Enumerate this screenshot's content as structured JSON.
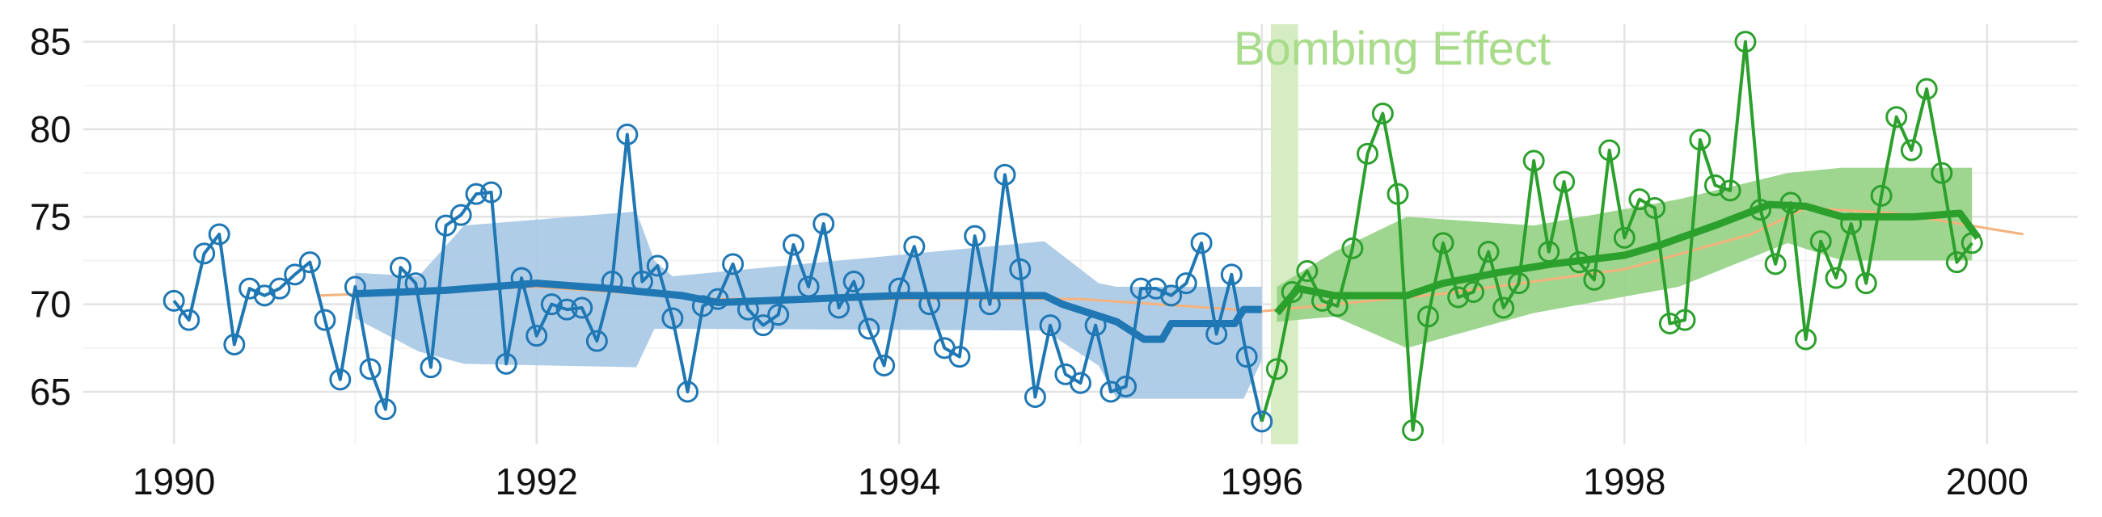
{
  "chart_data": {
    "type": "line",
    "annotation": "Bombing Effect",
    "annotation_span": [
      1996.05,
      1996.2
    ],
    "annotation_color": "#a8dc8a",
    "span_color": "#d6edc4",
    "xlim": [
      1989.5,
      2000.5
    ],
    "ylim": [
      62,
      86
    ],
    "xticks": [
      1990,
      1992,
      1994,
      1996,
      1998,
      2000
    ],
    "yticks": [
      65,
      70,
      75,
      80,
      85
    ],
    "grid": true,
    "series": [
      {
        "color": "#1f77b4",
        "x": [
          1990,
          1990.083,
          1990.167,
          1990.25,
          1990.333,
          1990.417,
          1990.5,
          1990.583,
          1990.667,
          1990.75,
          1990.833,
          1990.917,
          1991,
          1991.083,
          1991.167,
          1991.25,
          1991.333,
          1991.417,
          1991.5,
          1991.583,
          1991.667,
          1991.75,
          1991.833,
          1991.917,
          1992,
          1992.083,
          1992.167,
          1992.25,
          1992.333,
          1992.417,
          1992.5,
          1992.583,
          1992.667,
          1992.75,
          1992.833,
          1992.917,
          1993,
          1993.083,
          1993.167,
          1993.25,
          1993.333,
          1993.417,
          1993.5,
          1993.583,
          1993.667,
          1993.75,
          1993.833,
          1993.917,
          1994,
          1994.083,
          1994.167,
          1994.25,
          1994.333,
          1994.417,
          1994.5,
          1994.583,
          1994.667,
          1994.75,
          1994.833,
          1994.917,
          1995,
          1995.083,
          1995.167,
          1995.25,
          1995.333,
          1995.417,
          1995.5,
          1995.583,
          1995.667,
          1995.75,
          1995.833,
          1995.917,
          1996
        ],
        "values": [
          70.2,
          69.1,
          72.9,
          74.0,
          67.7,
          70.9,
          70.5,
          70.9,
          71.7,
          72.4,
          69.1,
          65.7,
          71.0,
          66.3,
          64.0,
          72.1,
          71.2,
          66.4,
          74.5,
          75.1,
          76.3,
          76.4,
          66.6,
          71.5,
          68.2,
          70.0,
          69.7,
          69.8,
          67.9,
          71.3,
          79.7,
          71.3,
          72.2,
          69.2,
          65.0,
          69.9,
          70.3,
          72.3,
          69.7,
          68.8,
          69.4,
          73.4,
          71.0,
          74.6,
          69.8,
          71.3,
          68.6,
          66.5,
          70.9,
          73.3,
          70.0,
          67.5,
          67.0,
          73.9,
          70.0,
          77.4,
          72.0,
          64.7,
          68.8,
          66.0,
          65.5,
          68.8,
          65.0,
          65.3,
          70.9,
          70.9,
          70.5,
          71.2,
          73.5,
          68.3,
          71.7,
          67.0,
          63.3
        ]
      },
      {
        "color": "#2ca02c",
        "x": [
          1996.083,
          1996.167,
          1996.25,
          1996.333,
          1996.417,
          1996.5,
          1996.583,
          1996.667,
          1996.75,
          1996.833,
          1996.917,
          1997,
          1997.083,
          1997.167,
          1997.25,
          1997.333,
          1997.417,
          1997.5,
          1997.583,
          1997.667,
          1997.75,
          1997.833,
          1997.917,
          1998,
          1998.083,
          1998.167,
          1998.25,
          1998.333,
          1998.417,
          1998.5,
          1998.583,
          1998.667,
          1998.75,
          1998.833,
          1998.917,
          1999,
          1999.083,
          1999.167,
          1999.25,
          1999.333,
          1999.417,
          1999.5,
          1999.583,
          1999.667,
          1999.75,
          1999.833,
          1999.917
        ],
        "values": [
          66.3,
          70.7,
          71.9,
          70.2,
          69.9,
          73.2,
          78.6,
          80.9,
          76.3,
          62.8,
          69.3,
          73.5,
          70.4,
          70.7,
          73.0,
          69.8,
          71.2,
          78.2,
          73.0,
          77.0,
          72.4,
          71.4,
          78.8,
          73.8,
          76.0,
          75.5,
          68.9,
          69.1,
          79.4,
          76.8,
          76.5,
          85.0,
          75.4,
          72.3,
          75.8,
          68.0,
          73.6,
          71.5,
          74.6,
          71.2,
          76.2,
          80.7,
          78.8,
          82.3,
          77.5,
          72.4,
          73.5
        ]
      }
    ],
    "bands": [
      {
        "color": "#a7c8e5",
        "x": [
          1991,
          1991.35,
          1991.6,
          1992.55,
          1992.65,
          1992.75,
          1994.8,
          1995.1,
          1995.2,
          1995.9,
          1996
        ],
        "lower": [
          69.2,
          67.3,
          66.6,
          66.4,
          68.6,
          68.6,
          68.5,
          66.5,
          64.6,
          64.6,
          66.8
        ],
        "upper": [
          71.8,
          71.6,
          74.5,
          75.3,
          72.5,
          71.6,
          73.6,
          71.2,
          71.0,
          71.0,
          71.0
        ]
      },
      {
        "color": "#94d184",
        "x": [
          1996.083,
          1996.4,
          1996.8,
          1997.5,
          1998.3,
          1998.9,
          1999.2,
          1999.917
        ],
        "lower": [
          69.0,
          69.3,
          67.5,
          69.5,
          71.0,
          73.5,
          72.5,
          72.5
        ],
        "upper": [
          71.0,
          73.0,
          75.0,
          74.5,
          76.0,
          77.5,
          77.8,
          77.8
        ]
      }
    ],
    "rolling": [
      {
        "color": "#1f77b4",
        "x": [
          1991,
          1991.5,
          1992,
          1992.4,
          1992.5,
          1992.8,
          1993,
          1994,
          1994.8,
          1994.9,
          1995.2,
          1995.35,
          1995.45,
          1995.5,
          1995.85,
          1995.9,
          1996
        ],
        "values": [
          70.6,
          70.8,
          71.2,
          70.9,
          70.8,
          70.5,
          70.1,
          70.5,
          70.5,
          70.0,
          69.0,
          68.0,
          68.0,
          68.9,
          68.9,
          69.7,
          69.7
        ]
      },
      {
        "color": "#2ca02c",
        "x": [
          1996.083,
          1996.2,
          1996.4,
          1996.8,
          1997,
          1997.3,
          1997.6,
          1998,
          1998.2,
          1998.5,
          1998.8,
          1999,
          1999.2,
          1999.6,
          1999.85,
          1999.95
        ],
        "values": [
          69.5,
          70.9,
          70.5,
          70.5,
          71.2,
          71.8,
          72.3,
          72.8,
          73.4,
          74.5,
          75.7,
          75.6,
          75.0,
          75.0,
          75.2,
          73.8
        ]
      }
    ],
    "trend": {
      "color": "#f5b27c",
      "x": [
        1990.8,
        1992,
        1993,
        1995,
        1996,
        1997,
        1998,
        1998.7,
        1999,
        1999.5,
        2000.2
      ],
      "values": [
        70.5,
        71.0,
        70.3,
        70.3,
        69.6,
        70.6,
        72.0,
        74.0,
        75.5,
        75.2,
        74.0
      ]
    }
  }
}
